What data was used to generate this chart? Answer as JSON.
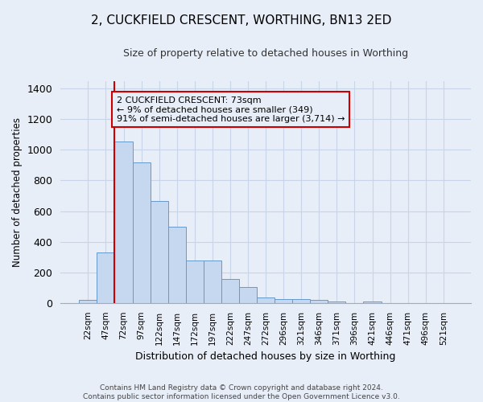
{
  "title": "2, CUCKFIELD CRESCENT, WORTHING, BN13 2ED",
  "subtitle": "Size of property relative to detached houses in Worthing",
  "xlabel": "Distribution of detached houses by size in Worthing",
  "ylabel": "Number of detached properties",
  "footer_line1": "Contains HM Land Registry data © Crown copyright and database right 2024.",
  "footer_line2": "Contains public sector information licensed under the Open Government Licence v3.0.",
  "bar_labels": [
    "22sqm",
    "47sqm",
    "72sqm",
    "97sqm",
    "122sqm",
    "147sqm",
    "172sqm",
    "197sqm",
    "222sqm",
    "247sqm",
    "272sqm",
    "296sqm",
    "321sqm",
    "346sqm",
    "371sqm",
    "396sqm",
    "421sqm",
    "446sqm",
    "471sqm",
    "496sqm",
    "521sqm"
  ],
  "bar_values": [
    20,
    330,
    1055,
    920,
    665,
    500,
    275,
    275,
    155,
    105,
    38,
    25,
    25,
    20,
    12,
    0,
    12,
    0,
    0,
    0,
    0
  ],
  "bar_color": "#c5d8f0",
  "bar_edge_color": "#6699cc",
  "grid_color": "#c8d4e8",
  "bg_color": "#e8eef8",
  "vline_x_index": 2,
  "vline_color": "#cc0000",
  "annotation_text": "2 CUCKFIELD CRESCENT: 73sqm\n← 9% of detached houses are smaller (349)\n91% of semi-detached houses are larger (3,714) →",
  "annotation_box_edgecolor": "#cc0000",
  "ylim": [
    0,
    1450
  ],
  "yticks": [
    0,
    200,
    400,
    600,
    800,
    1000,
    1200,
    1400
  ]
}
